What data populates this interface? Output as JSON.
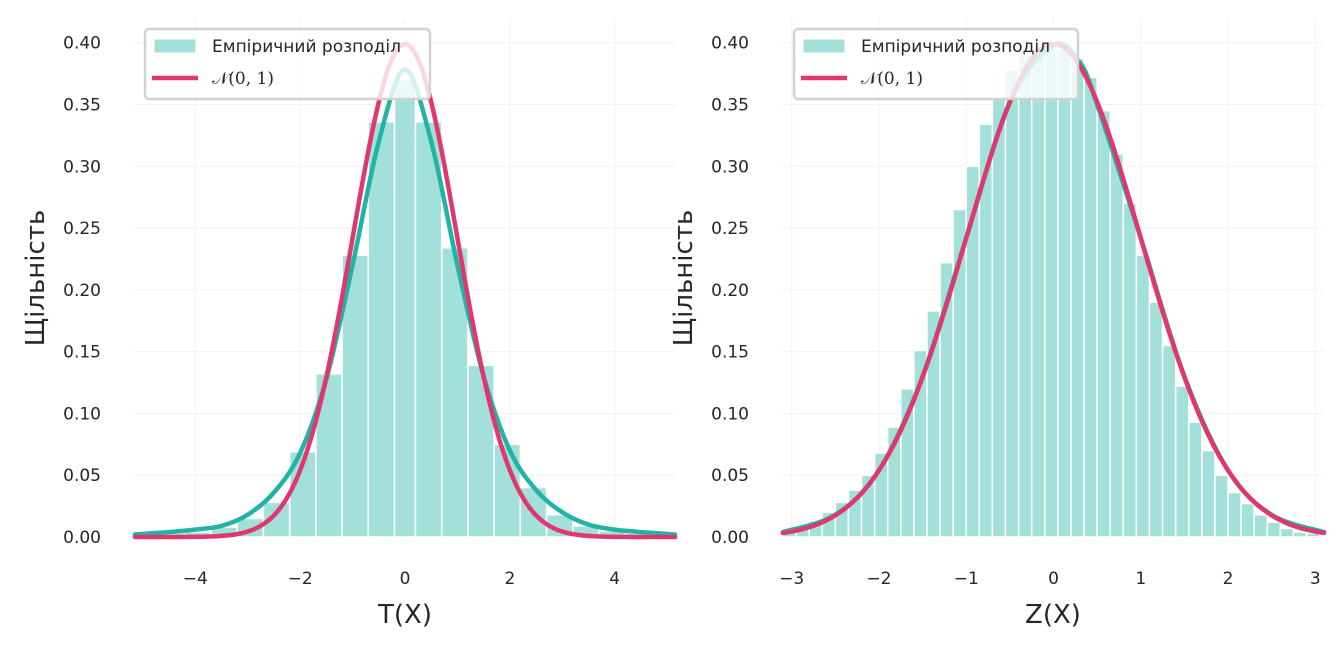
{
  "colors": {
    "hist_fill": "#a4e0da",
    "kde_line": "#22b2a6",
    "normal_line": "#e0386e",
    "grid": "#f1f1f1",
    "text": "#262626"
  },
  "chart_data": [
    {
      "type": "bar",
      "subtype": "histogram-with-density-curves",
      "xlabel": "T(X)",
      "ylabel": "Щільність",
      "xlim": [
        -5.15,
        5.15
      ],
      "ylim": [
        0,
        0.42
      ],
      "xticks": [
        -4,
        -2,
        0,
        2,
        4
      ],
      "xtick_labels": [
        "−4",
        "−2",
        "0",
        "2",
        "4"
      ],
      "yticks": [
        0,
        0.05,
        0.1,
        0.15,
        0.2,
        0.25,
        0.3,
        0.35,
        0.4
      ],
      "ytick_labels": [
        "0.00",
        "0.05",
        "0.10",
        "0.15",
        "0.20",
        "0.25",
        "0.30",
        "0.35",
        "0.40"
      ],
      "grid": true,
      "legend": "top-left",
      "histogram": {
        "name": "Емпіричний розподіл",
        "bin_edges": [
          -5.2,
          -4.7,
          -4.2,
          -3.7,
          -3.2,
          -2.7,
          -2.2,
          -1.7,
          -1.2,
          -0.7,
          -0.2,
          0.2,
          0.7,
          1.2,
          1.7,
          2.2,
          2.7,
          3.2,
          3.7,
          4.2,
          4.7,
          5.2
        ],
        "values": [
          0.002,
          0.003,
          0.004,
          0.008,
          0.015,
          0.028,
          0.069,
          0.132,
          0.228,
          0.336,
          0.37,
          0.336,
          0.234,
          0.139,
          0.075,
          0.04,
          0.018,
          0.009,
          0.005,
          0.003,
          0.002
        ]
      },
      "series": [
        {
          "name": "",
          "style": "kde",
          "x": [
            -5.15,
            -4.5,
            -4.0,
            -3.5,
            -3.0,
            -2.5,
            -2.0,
            -1.5,
            -1.0,
            -0.5,
            0.0,
            0.5,
            1.0,
            1.5,
            2.0,
            2.5,
            3.0,
            3.5,
            4.0,
            4.5,
            5.15
          ],
          "y": [
            0.002,
            0.004,
            0.006,
            0.009,
            0.018,
            0.036,
            0.068,
            0.128,
            0.22,
            0.32,
            0.378,
            0.32,
            0.22,
            0.13,
            0.07,
            0.038,
            0.02,
            0.01,
            0.006,
            0.004,
            0.002
          ]
        },
        {
          "name": "𝒩(0, 1)",
          "style": "normal_pdf",
          "mean": 0,
          "sd": 1
        }
      ]
    },
    {
      "type": "bar",
      "subtype": "histogram-with-density-curves",
      "xlabel": "Z(X)",
      "ylabel": "Щільність",
      "xlim": [
        -3.1,
        3.1
      ],
      "ylim": [
        0,
        0.42
      ],
      "xticks": [
        -3,
        -2,
        -1,
        0,
        1,
        2,
        3
      ],
      "xtick_labels": [
        "−3",
        "−2",
        "−1",
        "0",
        "1",
        "2",
        "3"
      ],
      "yticks": [
        0,
        0.05,
        0.1,
        0.15,
        0.2,
        0.25,
        0.3,
        0.35,
        0.4
      ],
      "ytick_labels": [
        "0.00",
        "0.05",
        "0.10",
        "0.15",
        "0.20",
        "0.25",
        "0.30",
        "0.35",
        "0.40"
      ],
      "grid": true,
      "legend": "top-left",
      "histogram": {
        "name": "Емпіричний розподіл",
        "bin_edges": [
          -3.1,
          -2.95,
          -2.8,
          -2.65,
          -2.5,
          -2.35,
          -2.2,
          -2.05,
          -1.9,
          -1.75,
          -1.6,
          -1.45,
          -1.3,
          -1.15,
          -1.0,
          -0.85,
          -0.7,
          -0.55,
          -0.4,
          -0.25,
          -0.1,
          0.05,
          0.2,
          0.35,
          0.5,
          0.65,
          0.8,
          0.95,
          1.1,
          1.25,
          1.4,
          1.55,
          1.7,
          1.85,
          2.0,
          2.15,
          2.3,
          2.45,
          2.6,
          2.75,
          2.9,
          3.05
        ],
        "values": [
          0.005,
          0.008,
          0.013,
          0.02,
          0.028,
          0.038,
          0.05,
          0.068,
          0.089,
          0.12,
          0.151,
          0.183,
          0.222,
          0.265,
          0.3,
          0.334,
          0.356,
          0.378,
          0.39,
          0.396,
          0.397,
          0.395,
          0.387,
          0.372,
          0.345,
          0.31,
          0.27,
          0.228,
          0.19,
          0.155,
          0.122,
          0.093,
          0.07,
          0.05,
          0.036,
          0.027,
          0.018,
          0.012,
          0.007,
          0.004,
          0.003
        ]
      },
      "series": [
        {
          "name": "",
          "style": "kde",
          "x": [
            -3.1,
            -2.5,
            -2.0,
            -1.5,
            -1.0,
            -0.5,
            0.0,
            0.3,
            0.5,
            1.0,
            1.5,
            2.0,
            2.5,
            3.1
          ],
          "y": [
            0.004,
            0.018,
            0.054,
            0.13,
            0.242,
            0.352,
            0.398,
            0.384,
            0.35,
            0.242,
            0.13,
            0.054,
            0.018,
            0.004
          ]
        },
        {
          "name": "𝒩(0, 1)",
          "style": "normal_pdf",
          "mean": 0,
          "sd": 1
        }
      ]
    }
  ]
}
